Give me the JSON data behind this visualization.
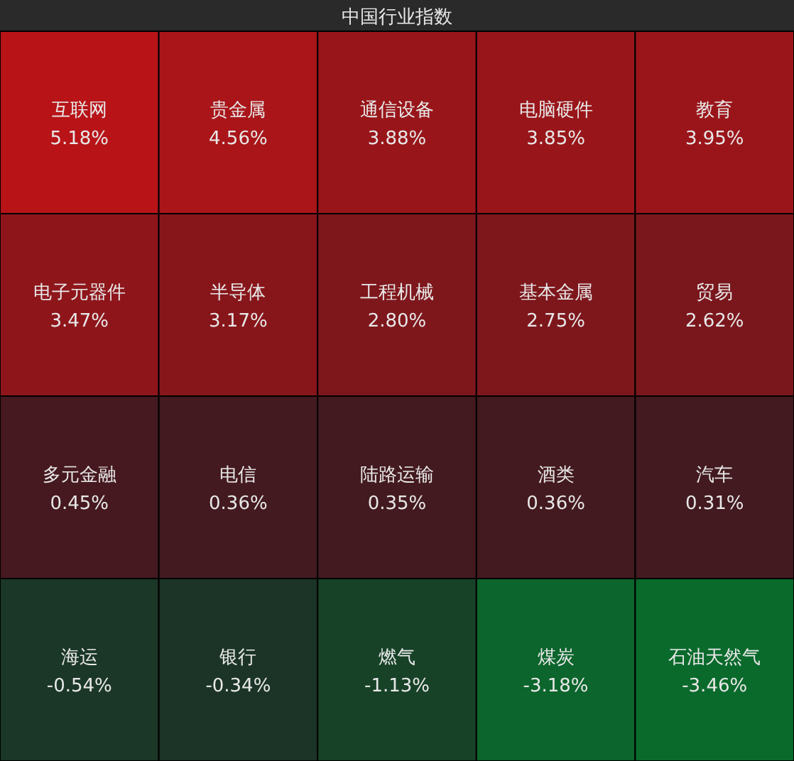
{
  "chart_data": {
    "type": "other",
    "title": "中国行业指数",
    "categories": [
      "互联网",
      "贵金属",
      "通信设备",
      "电脑硬件",
      "教育",
      "电子元器件",
      "半导体",
      "工程机械",
      "基本金属",
      "贸易",
      "多元金融",
      "电信",
      "陆路运输",
      "酒类",
      "汽车",
      "海运",
      "银行",
      "燃气",
      "煤炭",
      "石油天然气"
    ],
    "values": [
      5.18,
      4.56,
      3.88,
      3.85,
      3.95,
      3.47,
      3.17,
      2.8,
      2.75,
      2.62,
      0.45,
      0.36,
      0.35,
      0.36,
      0.31,
      -0.54,
      -0.34,
      -1.13,
      -3.18,
      -3.46
    ],
    "value_labels": [
      "5.18%",
      "4.56%",
      "3.88%",
      "3.85%",
      "3.95%",
      "3.47%",
      "3.17%",
      "2.80%",
      "2.75%",
      "2.62%",
      "0.45%",
      "0.36%",
      "0.35%",
      "0.36%",
      "0.31%",
      "-0.54%",
      "-0.34%",
      "-1.13%",
      "-3.18%",
      "-3.46%"
    ]
  }
}
